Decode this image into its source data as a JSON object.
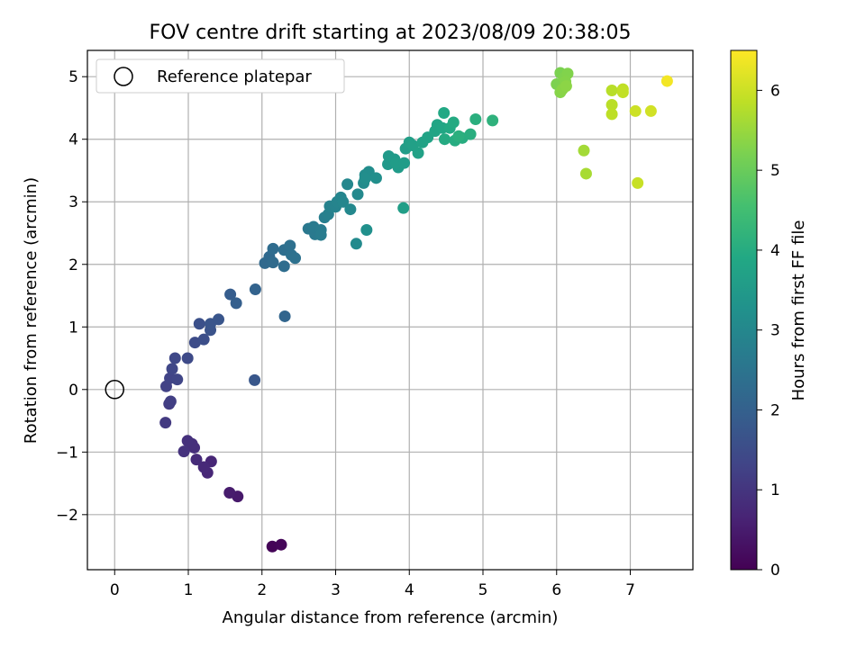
{
  "chart_data": {
    "type": "scatter",
    "title": "FOV centre drift starting at 2023/08/09 20:38:05",
    "xlabel": "Angular distance from reference (arcmin)",
    "ylabel": "Rotation from reference (arcmin)",
    "xlim": [
      -0.37,
      7.85
    ],
    "ylim": [
      -2.88,
      5.42
    ],
    "xticks": [
      0,
      1,
      2,
      3,
      4,
      5,
      6,
      7
    ],
    "yticks": [
      -2,
      -1,
      0,
      1,
      2,
      3,
      4,
      5
    ],
    "grid": true,
    "legend": {
      "placement": "top-left",
      "entries": [
        "Reference platepar"
      ]
    },
    "reference_point": {
      "x": 0,
      "y": 0
    },
    "colorbar": {
      "label": "Hours from first FF file",
      "range": [
        0,
        6.5
      ],
      "ticks": [
        0,
        1,
        2,
        3,
        4,
        5,
        6
      ],
      "colormap": "viridis"
    },
    "points": [
      [
        2.14,
        -2.51,
        0.05
      ],
      [
        2.26,
        -2.48,
        0.1
      ],
      [
        1.67,
        -1.71,
        0.45
      ],
      [
        1.56,
        -1.65,
        0.5
      ],
      [
        1.31,
        -1.15,
        0.7
      ],
      [
        1.26,
        -1.33,
        0.72
      ],
      [
        1.21,
        -1.24,
        0.75
      ],
      [
        1.11,
        -1.12,
        0.8
      ],
      [
        1.08,
        -0.93,
        0.85
      ],
      [
        1.05,
        -0.87,
        0.88
      ],
      [
        0.99,
        -0.82,
        0.9
      ],
      [
        0.94,
        -0.99,
        0.93
      ],
      [
        0.69,
        -0.53,
        1.1
      ],
      [
        0.74,
        -0.23,
        1.15
      ],
      [
        0.76,
        -0.19,
        1.2
      ],
      [
        0.7,
        0.05,
        1.25
      ],
      [
        0.75,
        0.18,
        1.3
      ],
      [
        0.85,
        0.16,
        1.35
      ],
      [
        0.78,
        0.33,
        1.38
      ],
      [
        0.82,
        0.5,
        1.4
      ],
      [
        0.99,
        0.5,
        1.45
      ],
      [
        1.09,
        0.75,
        1.5
      ],
      [
        1.21,
        0.8,
        1.55
      ],
      [
        1.15,
        1.05,
        1.6
      ],
      [
        1.3,
        0.95,
        1.65
      ],
      [
        1.3,
        1.05,
        1.7
      ],
      [
        1.41,
        1.12,
        1.72
      ],
      [
        1.9,
        0.15,
        1.75
      ],
      [
        1.57,
        1.52,
        1.9
      ],
      [
        1.65,
        1.38,
        1.95
      ],
      [
        1.91,
        1.6,
        2.05
      ],
      [
        2.31,
        1.17,
        2.1
      ],
      [
        2.04,
        2.02,
        2.2
      ],
      [
        2.1,
        2.12,
        2.22
      ],
      [
        2.15,
        2.03,
        2.25
      ],
      [
        2.15,
        2.25,
        2.3
      ],
      [
        2.3,
        1.97,
        2.32
      ],
      [
        2.3,
        2.23,
        2.35
      ],
      [
        2.38,
        2.3,
        2.38
      ],
      [
        2.4,
        2.15,
        2.4
      ],
      [
        2.45,
        2.1,
        2.42
      ],
      [
        2.63,
        2.57,
        2.6
      ],
      [
        2.72,
        2.48,
        2.62
      ],
      [
        2.7,
        2.6,
        2.65
      ],
      [
        2.8,
        2.55,
        2.67
      ],
      [
        2.8,
        2.47,
        2.7
      ],
      [
        2.85,
        2.75,
        2.75
      ],
      [
        2.9,
        2.8,
        2.8
      ],
      [
        2.92,
        2.93,
        2.85
      ],
      [
        3.0,
        2.92,
        2.88
      ],
      [
        3.02,
        3.0,
        2.92
      ],
      [
        3.07,
        3.07,
        2.95
      ],
      [
        3.1,
        3.0,
        2.97
      ],
      [
        3.16,
        3.28,
        3.0
      ],
      [
        3.2,
        2.88,
        3.02
      ],
      [
        3.3,
        3.12,
        3.05
      ],
      [
        3.28,
        2.33,
        3.08
      ],
      [
        3.38,
        3.3,
        3.1
      ],
      [
        3.4,
        3.43,
        3.12
      ],
      [
        3.45,
        3.48,
        3.15
      ],
      [
        3.4,
        3.37,
        3.17
      ],
      [
        3.55,
        3.38,
        3.2
      ],
      [
        3.42,
        2.55,
        3.22
      ],
      [
        3.71,
        3.6,
        3.45
      ],
      [
        3.72,
        3.73,
        3.48
      ],
      [
        3.8,
        3.68,
        3.5
      ],
      [
        3.85,
        3.55,
        3.52
      ],
      [
        3.82,
        3.62,
        3.55
      ],
      [
        3.93,
        3.62,
        3.57
      ],
      [
        3.95,
        3.85,
        3.6
      ],
      [
        3.92,
        2.9,
        3.62
      ],
      [
        4.0,
        3.95,
        3.65
      ],
      [
        4.05,
        3.9,
        3.68
      ],
      [
        4.12,
        3.78,
        3.7
      ],
      [
        4.18,
        3.95,
        3.72
      ],
      [
        4.25,
        4.03,
        3.75
      ],
      [
        4.35,
        4.13,
        3.8
      ],
      [
        4.38,
        4.23,
        3.82
      ],
      [
        4.45,
        4.18,
        3.85
      ],
      [
        4.47,
        4.42,
        3.9
      ],
      [
        4.55,
        4.18,
        3.92
      ],
      [
        4.6,
        4.27,
        3.95
      ],
      [
        4.48,
        4.0,
        3.97
      ],
      [
        4.62,
        3.98,
        4.0
      ],
      [
        4.72,
        4.02,
        4.02
      ],
      [
        4.83,
        4.08,
        4.05
      ],
      [
        4.9,
        4.32,
        4.08
      ],
      [
        4.67,
        4.05,
        4.1
      ],
      [
        5.13,
        4.3,
        4.15
      ],
      [
        6.05,
        5.06,
        5.2
      ],
      [
        6.0,
        4.88,
        5.22
      ],
      [
        6.1,
        4.98,
        5.25
      ],
      [
        6.15,
        5.05,
        5.27
      ],
      [
        6.12,
        4.92,
        5.3
      ],
      [
        6.05,
        4.75,
        5.32
      ],
      [
        6.08,
        4.8,
        5.35
      ],
      [
        6.13,
        4.85,
        5.37
      ],
      [
        6.37,
        3.82,
        5.6
      ],
      [
        6.4,
        3.45,
        5.65
      ],
      [
        6.75,
        4.78,
        5.8
      ],
      [
        6.75,
        4.55,
        5.82
      ],
      [
        6.75,
        4.4,
        5.85
      ],
      [
        6.9,
        4.8,
        5.88
      ],
      [
        6.9,
        4.75,
        5.9
      ],
      [
        7.1,
        3.3,
        5.95
      ],
      [
        7.07,
        4.45,
        6.0
      ],
      [
        7.28,
        4.45,
        6.05
      ],
      [
        7.5,
        4.93,
        6.4
      ]
    ]
  }
}
